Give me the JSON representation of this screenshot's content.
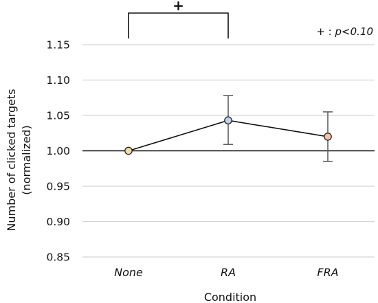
{
  "chart_data": {
    "type": "line",
    "categories": [
      "None",
      "RA",
      "FRA"
    ],
    "values": [
      1.0,
      1.043,
      1.02
    ],
    "error_low": [
      1.0,
      1.009,
      0.985
    ],
    "error_high": [
      1.0,
      1.078,
      1.055
    ],
    "point_colors": [
      "#f3dba4",
      "#bcd3ee",
      "#f6c2a8"
    ],
    "xlabel": "Condition",
    "ylabel_lines": [
      "Number of clicked targets",
      "(normalized)"
    ],
    "ylim": [
      0.85,
      1.15
    ],
    "yticks": [
      "0.85",
      "0.90",
      "0.95",
      "1.00",
      "1.05",
      "1.10",
      "1.15"
    ],
    "reference_line": 1.0,
    "grid": true,
    "significance": {
      "mark": "+",
      "between": [
        "None",
        "RA"
      ],
      "note_prefix": "+ : ",
      "note_value": "p<0.10"
    }
  }
}
